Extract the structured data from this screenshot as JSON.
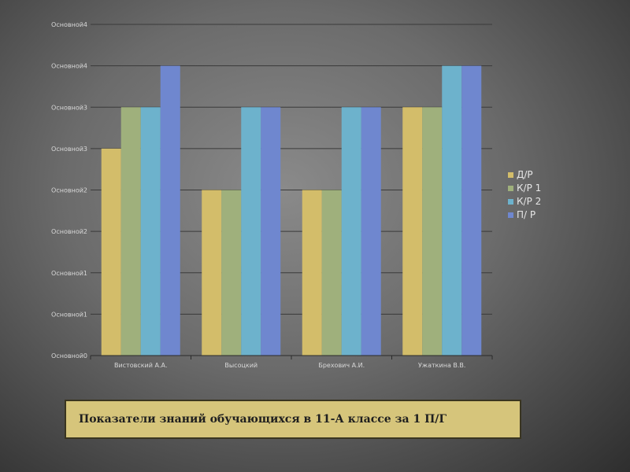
{
  "chart_data": {
    "type": "bar",
    "categories": [
      "Вистовский А.А.",
      "Высоцкий",
      "Брехович А.И.",
      "Ужаткина В.В."
    ],
    "series": [
      {
        "name": "Д/Р",
        "values": [
          5,
          4,
          4,
          6
        ],
        "color": "#d3bd6a"
      },
      {
        "name": "К/Р 1",
        "values": [
          6,
          4,
          4,
          6
        ],
        "color": "#9fb07c"
      },
      {
        "name": "К/Р 2",
        "values": [
          6,
          6,
          6,
          7
        ],
        "color": "#6db2cc"
      },
      {
        "name": "П/ Р",
        "values": [
          7,
          6,
          6,
          7
        ],
        "color": "#6f87cf"
      }
    ],
    "y_tick_labels": [
      "Основной0",
      "Основной1",
      "Основной1",
      "Основной2",
      "Основной2",
      "Основной3",
      "Основной3",
      "Основной4",
      "Основной4"
    ],
    "ylim": [
      0,
      8
    ],
    "grid": true,
    "legend": "right"
  },
  "caption": "Показатели знаний обучающихся в 11-А классе за  1 П/Г"
}
